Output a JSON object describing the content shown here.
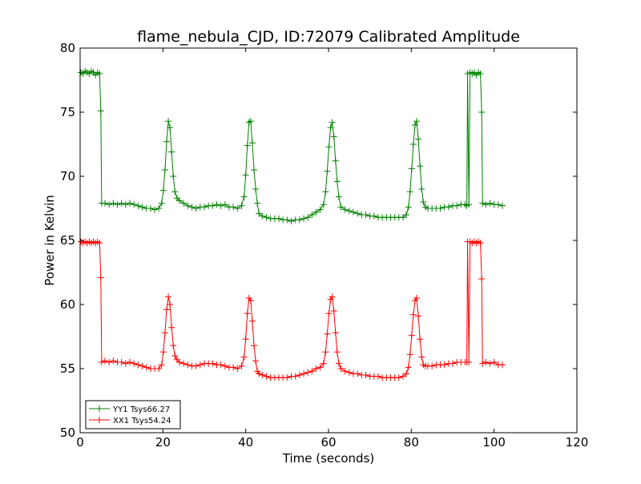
{
  "chart_data": {
    "type": "line",
    "title": "flame_nebula_CJD, ID:72079 Calibrated Amplitude",
    "xlabel": "Time (seconds)",
    "ylabel": "Power in Kelvin",
    "xlim": [
      0,
      120
    ],
    "ylim": [
      50,
      80
    ],
    "xticks": [
      "0",
      "20",
      "40",
      "60",
      "80",
      "100",
      "120"
    ],
    "yticks": [
      "50",
      "55",
      "60",
      "65",
      "70",
      "75",
      "80"
    ],
    "grid": false,
    "legend_position": "lower-left",
    "marker": "+",
    "series": [
      {
        "name": "YY1 Tsys66.27",
        "color": "#008000",
        "points": [
          [
            0.2,
            78.1
          ],
          [
            0.7,
            78.0
          ],
          [
            1.2,
            78.2
          ],
          [
            1.7,
            78.1
          ],
          [
            2.2,
            78.0
          ],
          [
            2.7,
            78.2
          ],
          [
            3.2,
            78.1
          ],
          [
            3.7,
            77.9
          ],
          [
            4.2,
            78.1
          ],
          [
            4.7,
            78.0
          ],
          [
            5.0,
            75.1
          ],
          [
            5.2,
            67.9
          ],
          [
            6.0,
            67.9
          ],
          [
            7.0,
            67.8
          ],
          [
            8.0,
            67.9
          ],
          [
            9.0,
            67.8
          ],
          [
            10.0,
            67.9
          ],
          [
            11.0,
            67.8
          ],
          [
            12.0,
            67.9
          ],
          [
            13.0,
            67.8
          ],
          [
            14.0,
            67.7
          ],
          [
            15.0,
            67.6
          ],
          [
            16.0,
            67.5
          ],
          [
            17.0,
            67.5
          ],
          [
            18.0,
            67.4
          ],
          [
            19.0,
            67.5
          ],
          [
            19.7,
            67.9
          ],
          [
            20.1,
            68.9
          ],
          [
            20.5,
            70.5
          ],
          [
            20.9,
            72.7
          ],
          [
            21.3,
            74.3
          ],
          [
            21.7,
            73.8
          ],
          [
            22.1,
            71.9
          ],
          [
            22.5,
            70.0
          ],
          [
            22.9,
            68.8
          ],
          [
            23.4,
            68.3
          ],
          [
            24.0,
            68.1
          ],
          [
            25.0,
            67.9
          ],
          [
            26.0,
            67.7
          ],
          [
            27.0,
            67.6
          ],
          [
            28.0,
            67.5
          ],
          [
            29.0,
            67.6
          ],
          [
            30.0,
            67.6
          ],
          [
            31.0,
            67.7
          ],
          [
            32.0,
            67.7
          ],
          [
            33.0,
            67.8
          ],
          [
            34.0,
            67.7
          ],
          [
            35.0,
            67.8
          ],
          [
            36.0,
            67.6
          ],
          [
            37.0,
            67.6
          ],
          [
            38.0,
            67.5
          ],
          [
            39.0,
            67.7
          ],
          [
            39.6,
            68.4
          ],
          [
            40.0,
            70.1
          ],
          [
            40.4,
            72.4
          ],
          [
            40.8,
            74.2
          ],
          [
            41.2,
            74.3
          ],
          [
            41.6,
            72.6
          ],
          [
            42.0,
            70.5
          ],
          [
            42.4,
            69.0
          ],
          [
            42.8,
            67.9
          ],
          [
            43.2,
            67.1
          ],
          [
            44.0,
            66.9
          ],
          [
            45.0,
            66.8
          ],
          [
            46.0,
            66.7
          ],
          [
            47.0,
            66.7
          ],
          [
            48.0,
            66.7
          ],
          [
            49.0,
            66.6
          ],
          [
            50.0,
            66.6
          ],
          [
            51.0,
            66.5
          ],
          [
            52.0,
            66.6
          ],
          [
            53.0,
            66.6
          ],
          [
            54.0,
            66.7
          ],
          [
            55.0,
            66.8
          ],
          [
            56.0,
            67.0
          ],
          [
            57.0,
            67.2
          ],
          [
            58.0,
            67.4
          ],
          [
            58.8,
            67.8
          ],
          [
            59.3,
            68.8
          ],
          [
            59.7,
            70.4
          ],
          [
            60.1,
            72.3
          ],
          [
            60.5,
            73.8
          ],
          [
            60.9,
            74.2
          ],
          [
            61.3,
            73.1
          ],
          [
            61.7,
            71.2
          ],
          [
            62.1,
            69.6
          ],
          [
            62.5,
            68.4
          ],
          [
            63.0,
            67.6
          ],
          [
            64.0,
            67.4
          ],
          [
            65.0,
            67.3
          ],
          [
            66.0,
            67.2
          ],
          [
            67.0,
            67.1
          ],
          [
            68.0,
            67.0
          ],
          [
            69.0,
            67.0
          ],
          [
            70.0,
            66.9
          ],
          [
            71.0,
            66.9
          ],
          [
            72.0,
            66.8
          ],
          [
            73.0,
            66.8
          ],
          [
            74.0,
            66.8
          ],
          [
            75.0,
            66.8
          ],
          [
            76.0,
            66.8
          ],
          [
            77.0,
            66.8
          ],
          [
            78.0,
            66.8
          ],
          [
            78.8,
            67.0
          ],
          [
            79.3,
            67.6
          ],
          [
            79.7,
            68.8
          ],
          [
            80.1,
            70.6
          ],
          [
            80.5,
            72.5
          ],
          [
            80.9,
            74.0
          ],
          [
            81.3,
            74.3
          ],
          [
            81.7,
            72.9
          ],
          [
            82.1,
            70.8
          ],
          [
            82.5,
            69.0
          ],
          [
            82.9,
            68.0
          ],
          [
            83.4,
            67.6
          ],
          [
            84.0,
            67.5
          ],
          [
            85.0,
            67.5
          ],
          [
            86.0,
            67.5
          ],
          [
            87.0,
            67.5
          ],
          [
            88.0,
            67.6
          ],
          [
            89.0,
            67.6
          ],
          [
            90.0,
            67.7
          ],
          [
            91.0,
            67.7
          ],
          [
            92.0,
            67.8
          ],
          [
            93.0,
            67.8
          ],
          [
            93.4,
            67.7
          ],
          [
            93.6,
            78.0
          ],
          [
            93.9,
            67.8
          ],
          [
            94.2,
            78.1
          ],
          [
            94.7,
            78.0
          ],
          [
            95.2,
            78.1
          ],
          [
            95.7,
            77.9
          ],
          [
            96.2,
            78.1
          ],
          [
            96.7,
            78.0
          ],
          [
            97.0,
            75.0
          ],
          [
            97.2,
            67.9
          ],
          [
            98.0,
            67.8
          ],
          [
            99.0,
            67.9
          ],
          [
            100.0,
            67.8
          ],
          [
            101.0,
            67.8
          ],
          [
            102.0,
            67.7
          ]
        ]
      },
      {
        "name": "XX1 Tsys54.24",
        "color": "#ff0000",
        "points": [
          [
            0.2,
            64.9
          ],
          [
            0.7,
            64.8
          ],
          [
            1.2,
            64.9
          ],
          [
            1.7,
            64.8
          ],
          [
            2.2,
            64.9
          ],
          [
            2.7,
            64.8
          ],
          [
            3.2,
            64.9
          ],
          [
            3.7,
            64.8
          ],
          [
            4.2,
            64.9
          ],
          [
            4.7,
            64.8
          ],
          [
            5.0,
            62.1
          ],
          [
            5.2,
            55.5
          ],
          [
            6.0,
            55.6
          ],
          [
            7.0,
            55.5
          ],
          [
            8.0,
            55.6
          ],
          [
            9.0,
            55.5
          ],
          [
            10.0,
            55.5
          ],
          [
            11.0,
            55.4
          ],
          [
            12.0,
            55.5
          ],
          [
            13.0,
            55.4
          ],
          [
            14.0,
            55.3
          ],
          [
            15.0,
            55.2
          ],
          [
            16.0,
            55.1
          ],
          [
            17.0,
            55.0
          ],
          [
            18.0,
            55.0
          ],
          [
            19.0,
            55.0
          ],
          [
            19.7,
            55.3
          ],
          [
            20.1,
            56.3
          ],
          [
            20.5,
            57.8
          ],
          [
            20.9,
            59.6
          ],
          [
            21.3,
            60.6
          ],
          [
            21.7,
            60.0
          ],
          [
            22.1,
            58.2
          ],
          [
            22.5,
            56.8
          ],
          [
            22.9,
            56.0
          ],
          [
            23.4,
            55.7
          ],
          [
            24.0,
            55.5
          ],
          [
            25.0,
            55.4
          ],
          [
            26.0,
            55.3
          ],
          [
            27.0,
            55.2
          ],
          [
            28.0,
            55.2
          ],
          [
            29.0,
            55.3
          ],
          [
            30.0,
            55.4
          ],
          [
            31.0,
            55.4
          ],
          [
            32.0,
            55.4
          ],
          [
            33.0,
            55.3
          ],
          [
            34.0,
            55.3
          ],
          [
            35.0,
            55.2
          ],
          [
            36.0,
            55.1
          ],
          [
            37.0,
            55.1
          ],
          [
            38.0,
            55.0
          ],
          [
            39.0,
            55.2
          ],
          [
            39.6,
            55.9
          ],
          [
            40.0,
            57.3
          ],
          [
            40.4,
            59.3
          ],
          [
            40.8,
            60.5
          ],
          [
            41.2,
            60.3
          ],
          [
            41.6,
            58.7
          ],
          [
            42.0,
            56.8
          ],
          [
            42.4,
            55.6
          ],
          [
            42.8,
            54.8
          ],
          [
            43.2,
            54.6
          ],
          [
            44.0,
            54.5
          ],
          [
            45.0,
            54.4
          ],
          [
            46.0,
            54.3
          ],
          [
            47.0,
            54.3
          ],
          [
            48.0,
            54.3
          ],
          [
            49.0,
            54.3
          ],
          [
            50.0,
            54.3
          ],
          [
            51.0,
            54.4
          ],
          [
            52.0,
            54.4
          ],
          [
            53.0,
            54.5
          ],
          [
            54.0,
            54.6
          ],
          [
            55.0,
            54.7
          ],
          [
            56.0,
            54.8
          ],
          [
            57.0,
            55.0
          ],
          [
            58.0,
            55.1
          ],
          [
            58.8,
            55.4
          ],
          [
            59.3,
            56.3
          ],
          [
            59.7,
            57.7
          ],
          [
            60.1,
            59.3
          ],
          [
            60.5,
            60.4
          ],
          [
            60.9,
            60.6
          ],
          [
            61.3,
            59.5
          ],
          [
            61.7,
            57.8
          ],
          [
            62.1,
            56.3
          ],
          [
            62.5,
            55.4
          ],
          [
            63.0,
            55.0
          ],
          [
            64.0,
            54.8
          ],
          [
            65.0,
            54.7
          ],
          [
            66.0,
            54.6
          ],
          [
            67.0,
            54.6
          ],
          [
            68.0,
            54.5
          ],
          [
            69.0,
            54.5
          ],
          [
            70.0,
            54.4
          ],
          [
            71.0,
            54.4
          ],
          [
            72.0,
            54.4
          ],
          [
            73.0,
            54.3
          ],
          [
            74.0,
            54.3
          ],
          [
            75.0,
            54.3
          ],
          [
            76.0,
            54.3
          ],
          [
            77.0,
            54.3
          ],
          [
            78.0,
            54.4
          ],
          [
            78.8,
            54.6
          ],
          [
            79.3,
            55.1
          ],
          [
            79.7,
            56.1
          ],
          [
            80.1,
            57.6
          ],
          [
            80.5,
            59.2
          ],
          [
            80.9,
            60.3
          ],
          [
            81.3,
            60.5
          ],
          [
            81.7,
            59.1
          ],
          [
            82.1,
            57.3
          ],
          [
            82.5,
            55.9
          ],
          [
            82.9,
            55.3
          ],
          [
            83.4,
            55.2
          ],
          [
            84.0,
            55.2
          ],
          [
            85.0,
            55.2
          ],
          [
            86.0,
            55.3
          ],
          [
            87.0,
            55.3
          ],
          [
            88.0,
            55.3
          ],
          [
            89.0,
            55.4
          ],
          [
            90.0,
            55.4
          ],
          [
            91.0,
            55.5
          ],
          [
            92.0,
            55.5
          ],
          [
            93.0,
            55.5
          ],
          [
            93.4,
            55.5
          ],
          [
            93.6,
            64.9
          ],
          [
            93.9,
            55.5
          ],
          [
            94.2,
            64.9
          ],
          [
            94.7,
            64.8
          ],
          [
            95.2,
            64.9
          ],
          [
            95.7,
            64.8
          ],
          [
            96.2,
            64.9
          ],
          [
            96.7,
            64.8
          ],
          [
            97.0,
            62.0
          ],
          [
            97.2,
            55.4
          ],
          [
            98.0,
            55.5
          ],
          [
            99.0,
            55.4
          ],
          [
            100.0,
            55.5
          ],
          [
            101.0,
            55.3
          ],
          [
            102.0,
            55.3
          ]
        ]
      }
    ]
  }
}
